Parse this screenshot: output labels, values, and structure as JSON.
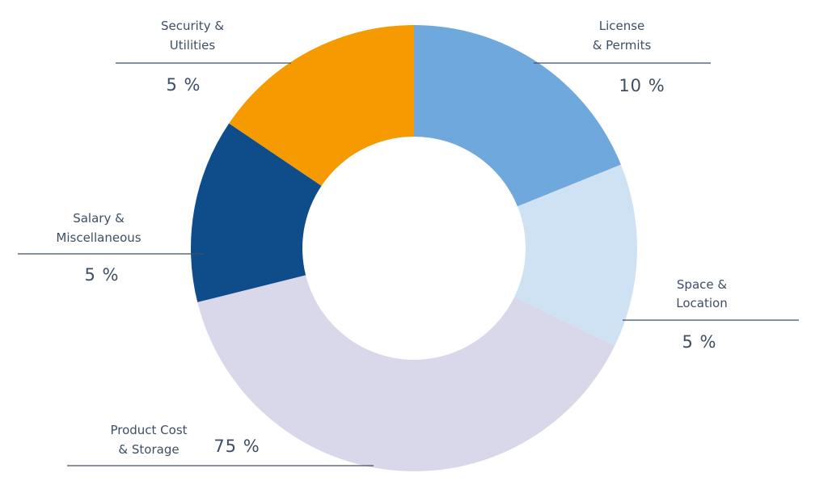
{
  "chart_data": {
    "type": "pie",
    "variant": "donut",
    "title": "",
    "slices": [
      {
        "name_lines": [
          "License",
          "& Permits"
        ],
        "value_label": "10  %",
        "color": "#6fa8dc"
      },
      {
        "name_lines": [
          "Space &",
          "Location"
        ],
        "value_label": "5  %",
        "color": "#cfe2f3"
      },
      {
        "name_lines": [
          "Product Cost",
          "& Storage"
        ],
        "value_label": "75  %",
        "color": "#d9d7ea"
      },
      {
        "name_lines": [
          "Salary &",
          "Miscellaneous"
        ],
        "value_label": "5  %",
        "color": "#0f4c8a"
      },
      {
        "name_lines": [
          "Security &",
          "Utilities"
        ],
        "value_label": "5  %",
        "color": "#f59a00"
      }
    ]
  }
}
